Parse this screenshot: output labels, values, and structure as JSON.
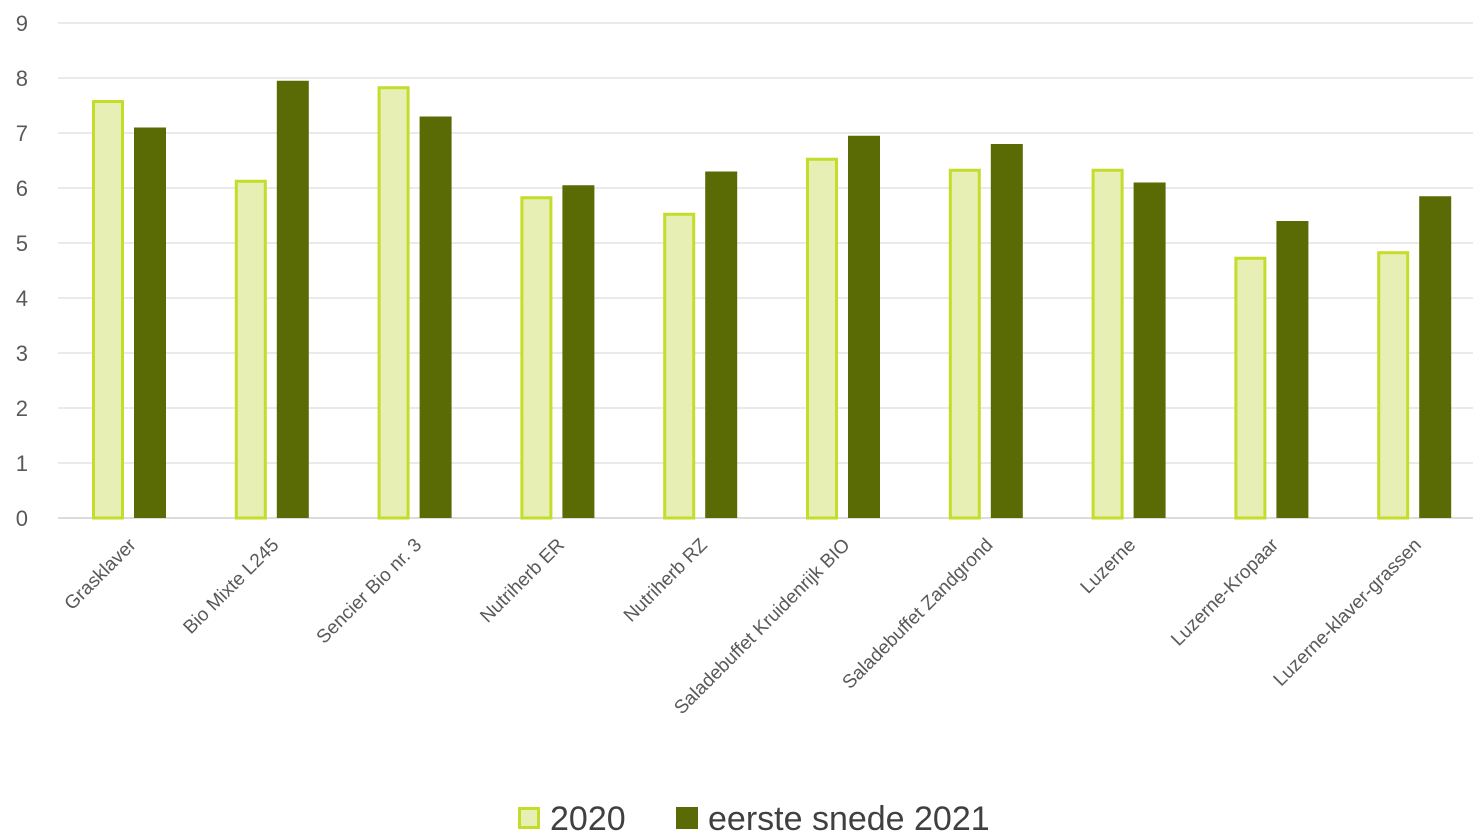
{
  "chart_data": {
    "type": "bar",
    "title": "",
    "xlabel": "",
    "ylabel": "",
    "ylim": [
      0,
      9
    ],
    "yticks": [
      0,
      1,
      2,
      3,
      4,
      5,
      6,
      7,
      8,
      9
    ],
    "grid": true,
    "legend_position": "bottom",
    "categories": [
      "Grasklaver",
      "Bio Mixte L245",
      "Sencier Bio nr. 3",
      "Nutriherb ER",
      "Nutriherb RZ",
      "Saladebuffet Kruidenrijk BIO",
      "Saladebuffet Zandgrond",
      "Luzerne",
      "Luzerne-Kropaar",
      "Luzerne-klaver-grassen"
    ],
    "series": [
      {
        "name": "2020",
        "fill": "#e8efb4",
        "stroke": "#c4dc2a",
        "values": [
          7.6,
          6.15,
          7.85,
          5.85,
          5.55,
          6.55,
          6.35,
          6.35,
          4.75,
          4.85
        ]
      },
      {
        "name": "eerste snede 2021",
        "fill": "#5a6b06",
        "stroke": "#5a6b06",
        "values": [
          7.1,
          7.95,
          7.3,
          6.05,
          6.3,
          6.95,
          6.8,
          6.1,
          5.4,
          5.85
        ]
      }
    ]
  }
}
